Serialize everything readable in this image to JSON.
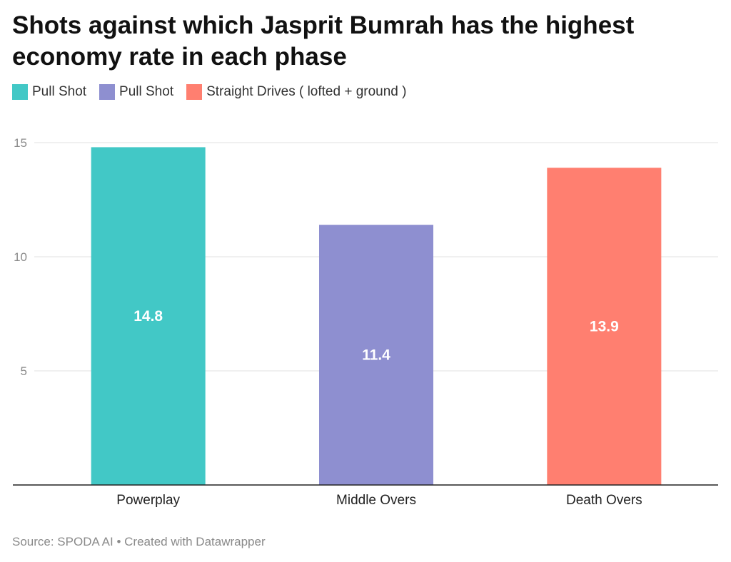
{
  "title": "Shots against which Jasprit Bumrah has the highest economy rate in each phase",
  "legend": [
    {
      "label": "Pull Shot",
      "color": "#42c8c6"
    },
    {
      "label": "Pull Shot",
      "color": "#8e8fd0"
    },
    {
      "label": "Straight Drives ( lofted + ground )",
      "color": "#ff7f70"
    }
  ],
  "source": "Source: SPODA AI • Created with Datawrapper",
  "chart_data": {
    "type": "bar",
    "categories": [
      "Powerplay",
      "Middle Overs",
      "Death Overs"
    ],
    "values": [
      14.8,
      11.4,
      13.9
    ],
    "colors": [
      "#42c8c6",
      "#8e8fd0",
      "#ff7f70"
    ],
    "value_labels": [
      "14.8",
      "11.4",
      "13.9"
    ],
    "y_ticks": [
      5,
      10,
      15
    ],
    "y_tick_labels": [
      "5",
      "10",
      "15"
    ],
    "ylim": [
      0,
      15
    ],
    "grid": true,
    "legend_placement": "top-left"
  }
}
